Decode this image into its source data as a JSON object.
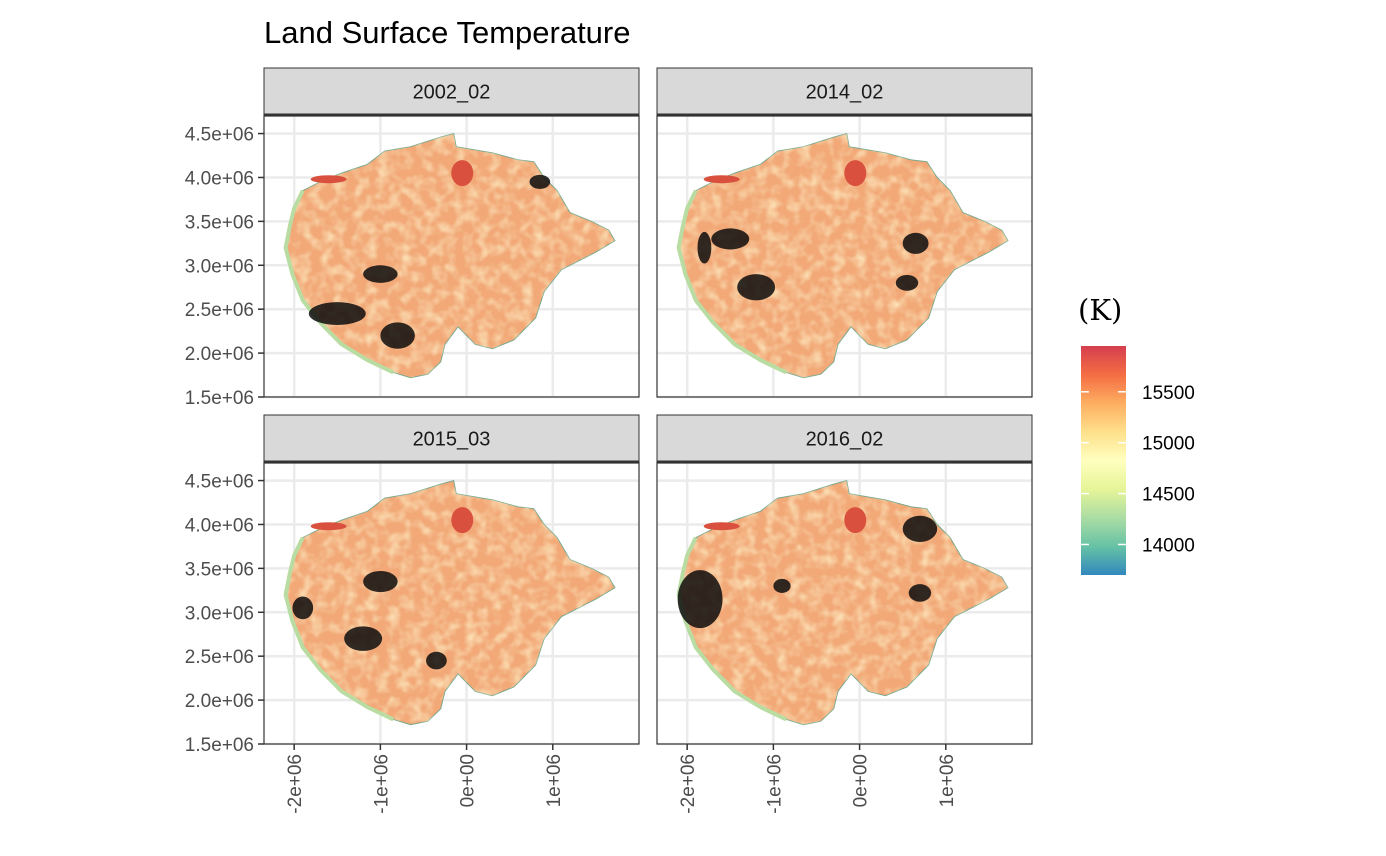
{
  "chart_data": {
    "type": "heatmap",
    "title": "Land Surface Temperature",
    "subtitle": "",
    "xlabel": "",
    "ylabel": "",
    "xlim": [
      -2350000,
      2000000
    ],
    "ylim": [
      1500000,
      4700000
    ],
    "x_ticks": [
      {
        "value": -2000000,
        "label": "-2e+06"
      },
      {
        "value": -1000000,
        "label": "-1e+06"
      },
      {
        "value": 0,
        "label": "0e+00"
      },
      {
        "value": 1000000,
        "label": "1e+06"
      }
    ],
    "y_ticks": [
      {
        "value": 1500000,
        "label": "1.5e+06"
      },
      {
        "value": 2000000,
        "label": "2.0e+06"
      },
      {
        "value": 2500000,
        "label": "2.5e+06"
      },
      {
        "value": 3000000,
        "label": "3.0e+06"
      },
      {
        "value": 3500000,
        "label": "3.5e+06"
      },
      {
        "value": 4000000,
        "label": "4.0e+06"
      },
      {
        "value": 4500000,
        "label": "4.5e+06"
      }
    ],
    "grid": true,
    "panels": [
      {
        "label": "2002_02"
      },
      {
        "label": "2014_02"
      },
      {
        "label": "2015_03"
      },
      {
        "label": "2016_02"
      }
    ],
    "legend": {
      "title": "(K)",
      "placement": "right",
      "range": [
        13700,
        15950
      ],
      "breaks": [
        {
          "value": 14000,
          "label": "14000"
        },
        {
          "value": 14500,
          "label": "14500"
        },
        {
          "value": 15000,
          "label": "15000"
        },
        {
          "value": 15500,
          "label": "15500"
        }
      ],
      "palette": [
        "#3288BD",
        "#66C2A5",
        "#ABDDA4",
        "#E6F598",
        "#FFFFBF",
        "#FEE08B",
        "#FDAE61",
        "#F46D43",
        "#D53E4F"
      ]
    }
  }
}
